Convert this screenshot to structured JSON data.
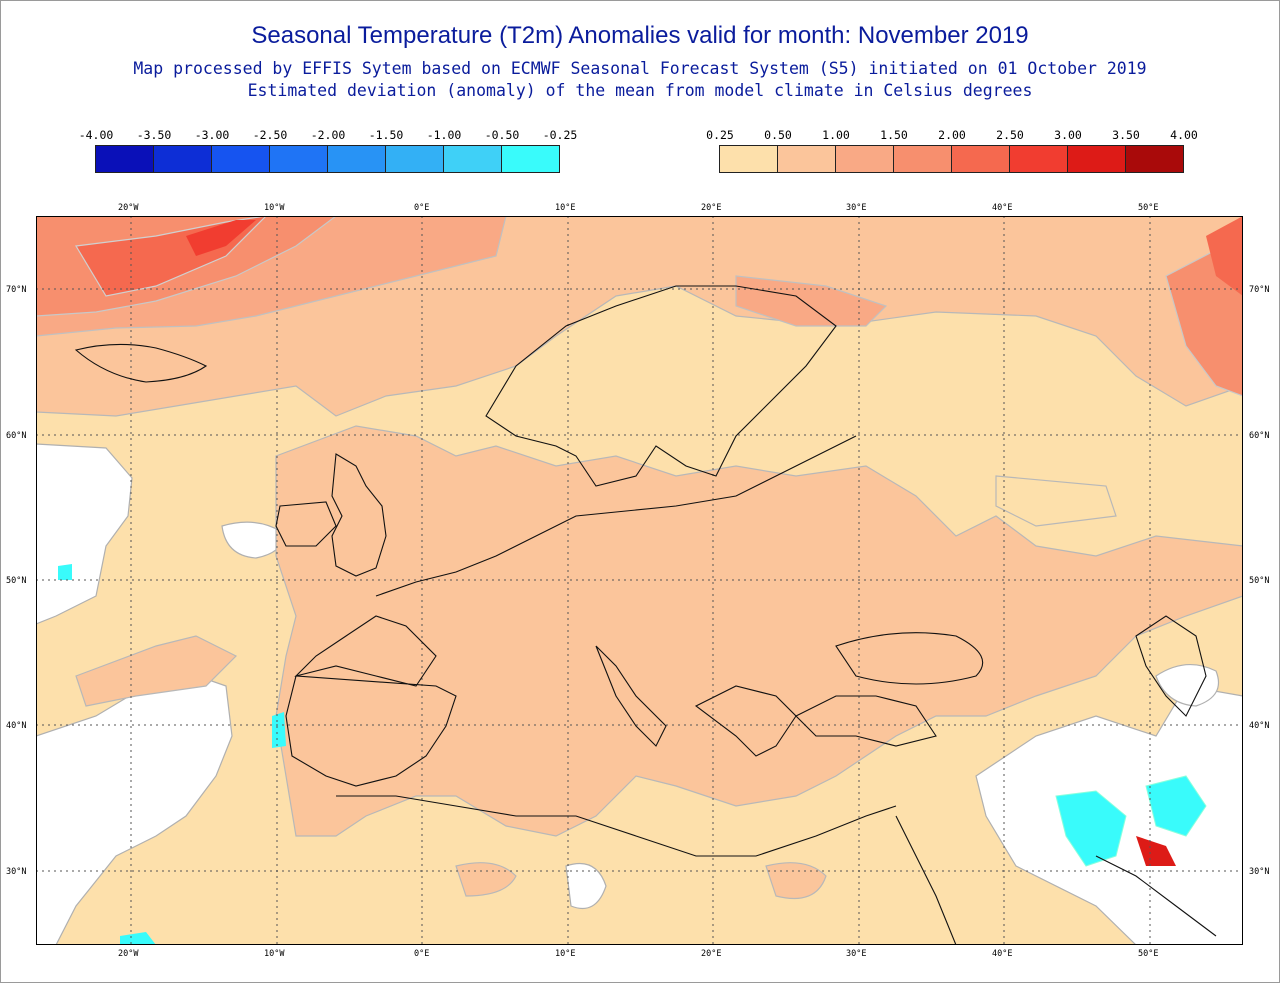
{
  "title": "Seasonal Temperature (T2m) Anomalies valid for month: November 2019",
  "subtitle1": "Map processed by EFFIS Sytem based on ECMWF Seasonal Forecast System (S5) initiated on 01 October 2019",
  "subtitle2": "Estimated deviation (anomaly) of the mean from model climate in Celsius degrees",
  "legend_negative": {
    "labels": [
      "-4.00",
      "-3.50",
      "-3.00",
      "-2.50",
      "-2.00",
      "-1.50",
      "-1.00",
      "-0.50",
      "-0.25"
    ],
    "colors": [
      "#0a10b8",
      "#0d2ed6",
      "#1654f0",
      "#1f74f5",
      "#2893f5",
      "#33b0f5",
      "#3fd0f7",
      "#39fbfb"
    ]
  },
  "legend_positive": {
    "labels": [
      "0.25",
      "0.50",
      "1.00",
      "1.50",
      "2.00",
      "2.50",
      "3.00",
      "3.50",
      "4.00"
    ],
    "colors": [
      "#fde0ab",
      "#fbc59b",
      "#f9a985",
      "#f78f6e",
      "#f5694f",
      "#f13d30",
      "#dd1b17",
      "#a90a0a"
    ]
  },
  "axis": {
    "lon_labels": [
      "20°W",
      "10°W",
      "0°E",
      "10°E",
      "20°E",
      "30°E",
      "40°E",
      "50°E"
    ],
    "lat_labels": [
      "70°N",
      "60°N",
      "50°N",
      "40°N",
      "30°N"
    ]
  }
}
